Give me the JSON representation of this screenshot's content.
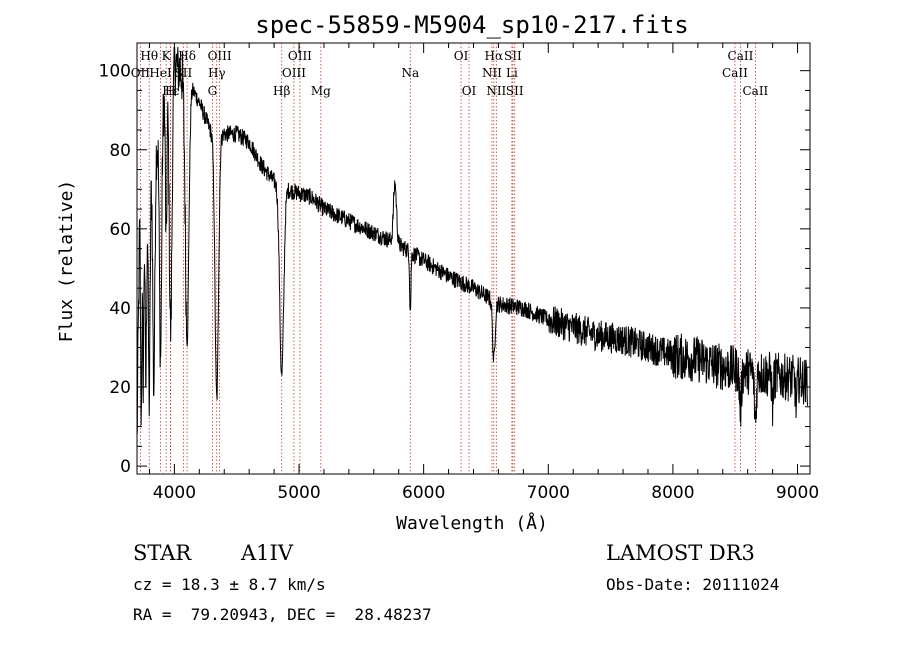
{
  "chart_data": {
    "type": "line",
    "title": "spec-55859-M5904_sp10-217.fits",
    "xlabel": "Wavelength (Å)",
    "ylabel": "Flux (relative)",
    "xlim": [
      3700,
      9100
    ],
    "ylim": [
      -2,
      107
    ],
    "xticks": [
      4000,
      5000,
      6000,
      7000,
      8000,
      9000
    ],
    "yticks": [
      0,
      20,
      40,
      60,
      80,
      100
    ],
    "continuum_points": [
      [
        3700,
        5
      ],
      [
        3720,
        60
      ],
      [
        3760,
        70
      ],
      [
        3800,
        72
      ],
      [
        3850,
        80
      ],
      [
        3900,
        90
      ],
      [
        3950,
        98
      ],
      [
        4000,
        102
      ],
      [
        4050,
        100
      ],
      [
        4100,
        98
      ],
      [
        4150,
        95
      ],
      [
        4200,
        92
      ],
      [
        4250,
        88
      ],
      [
        4300,
        84
      ],
      [
        4350,
        84
      ],
      [
        4400,
        84
      ],
      [
        4500,
        84
      ],
      [
        4600,
        82
      ],
      [
        4700,
        76
      ],
      [
        4800,
        72
      ],
      [
        4900,
        70
      ],
      [
        5000,
        69
      ],
      [
        5100,
        68
      ],
      [
        5200,
        65
      ],
      [
        5400,
        62
      ],
      [
        5600,
        59
      ],
      [
        5800,
        56
      ],
      [
        6000,
        52
      ],
      [
        6200,
        48
      ],
      [
        6400,
        45
      ],
      [
        6600,
        41
      ],
      [
        6800,
        40
      ],
      [
        7000,
        37
      ],
      [
        7200,
        35
      ],
      [
        7400,
        33
      ],
      [
        7600,
        32
      ],
      [
        7800,
        30
      ],
      [
        8000,
        28
      ],
      [
        8200,
        27
      ],
      [
        8400,
        25
      ],
      [
        8600,
        24
      ],
      [
        8800,
        23
      ],
      [
        9000,
        22
      ],
      [
        9100,
        21
      ]
    ],
    "absorption_features": [
      {
        "center": 3734,
        "depth": 50,
        "width": 5
      },
      {
        "center": 3750,
        "depth": 45,
        "width": 5
      },
      {
        "center": 3771,
        "depth": 50,
        "width": 6
      },
      {
        "center": 3798,
        "depth": 55,
        "width": 7
      },
      {
        "center": 3835,
        "depth": 58,
        "width": 8
      },
      {
        "center": 3889,
        "depth": 60,
        "width": 9
      },
      {
        "center": 3934,
        "depth": 40,
        "width": 6
      },
      {
        "center": 3970,
        "depth": 65,
        "width": 11
      },
      {
        "center": 4102,
        "depth": 66,
        "width": 14
      },
      {
        "center": 4340,
        "depth": 67,
        "width": 14
      },
      {
        "center": 4861,
        "depth": 48,
        "width": 16
      },
      {
        "center": 5893,
        "depth": 15,
        "width": 5
      },
      {
        "center": 6563,
        "depth": 15,
        "width": 10
      },
      {
        "center": 8542,
        "depth": 10,
        "width": 8
      },
      {
        "center": 8662,
        "depth": 12,
        "width": 8
      },
      {
        "center": 8800,
        "depth": 8,
        "width": 6
      },
      {
        "center": 8990,
        "depth": 7,
        "width": 6
      }
    ],
    "emission_features": [
      {
        "center": 5770,
        "height": 15,
        "width": 12
      }
    ],
    "line_markers": [
      {
        "label": "Hθ",
        "wavelength": 3798,
        "row": 0
      },
      {
        "label": "K",
        "wavelength": 3934,
        "row": 0
      },
      {
        "label": "Hδ",
        "wavelength": 4102,
        "row": 0
      },
      {
        "label": "OIII",
        "wavelength": 4363,
        "row": 0
      },
      {
        "label": "OIII",
        "wavelength": 5007,
        "row": 0
      },
      {
        "label": "OI",
        "wavelength": 6300,
        "row": 0
      },
      {
        "label": "Hα",
        "wavelength": 6563,
        "row": 0
      },
      {
        "label": "SII",
        "wavelength": 6716,
        "row": 0
      },
      {
        "label": "CaII",
        "wavelength": 8542,
        "row": 0
      },
      {
        "label": "OII",
        "wavelength": 3727,
        "row": 1
      },
      {
        "label": "HeI",
        "wavelength": 3889,
        "row": 1
      },
      {
        "label": "SII",
        "wavelength": 4072,
        "row": 1
      },
      {
        "label": "Hγ",
        "wavelength": 4340,
        "row": 1
      },
      {
        "label": "OIII",
        "wavelength": 4959,
        "row": 1
      },
      {
        "label": "Na",
        "wavelength": 5893,
        "row": 1
      },
      {
        "label": "NII",
        "wavelength": 6548,
        "row": 1
      },
      {
        "label": "Li",
        "wavelength": 6708,
        "row": 1
      },
      {
        "label": "CaII",
        "wavelength": 8498,
        "row": 1
      },
      {
        "label": "Hε",
        "wavelength": 3970,
        "row": 2
      },
      {
        "label": "H",
        "wavelength": 3968,
        "row": 2
      },
      {
        "label": "G",
        "wavelength": 4305,
        "row": 2
      },
      {
        "label": "Hβ",
        "wavelength": 4861,
        "row": 2
      },
      {
        "label": "Mg",
        "wavelength": 5175,
        "row": 2
      },
      {
        "label": "OI",
        "wavelength": 6364,
        "row": 2
      },
      {
        "label": "NII",
        "wavelength": 6583,
        "row": 2
      },
      {
        "label": "SII",
        "wavelength": 6731,
        "row": 2
      },
      {
        "label": "CaII",
        "wavelength": 8662,
        "row": 2
      }
    ]
  },
  "info": {
    "object_type": "STAR",
    "subclass": "A1IV",
    "survey": "LAMOST DR3",
    "cz": "cz = 18.3 ± 8.7 km/s",
    "obs_date": "Obs-Date: 20111024",
    "coords": "RA =  79.20943, DEC =  28.48237"
  }
}
